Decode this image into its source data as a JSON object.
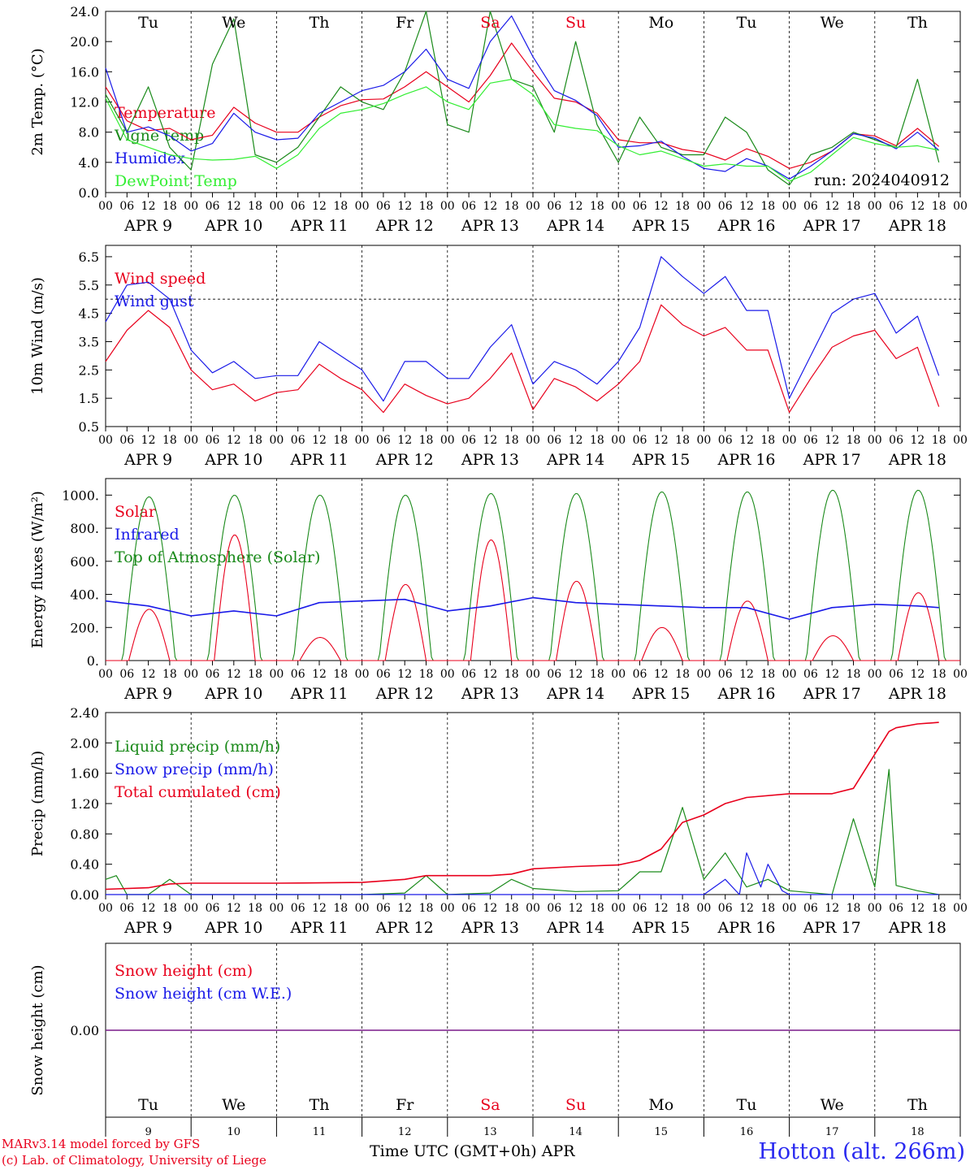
{
  "days": [
    "Tu",
    "We",
    "Th",
    "Fr",
    "Sa",
    "Su",
    "Mo",
    "Tu",
    "We",
    "Th"
  ],
  "dates": [
    "APR  9",
    "APR 10",
    "APR 11",
    "APR 12",
    "APR 13",
    "APR 14",
    "APR 15",
    "APR 16",
    "APR 17",
    "APR 18"
  ],
  "day_numbers": [
    "9",
    "10",
    "11",
    "12",
    "13",
    "14",
    "15",
    "16",
    "17",
    "18"
  ],
  "hour_labels": [
    "00",
    "06",
    "12",
    "18"
  ],
  "weekend_day_indices": [
    4,
    5
  ],
  "colors": {
    "weekend": "#e8001c",
    "temperature": "#e8001c",
    "vigne": "#1a8a1a",
    "humidex": "#1a1ae8",
    "dewpoint": "#33ee33",
    "solar": "#e8001c",
    "infrared": "#1a1ae8",
    "toa": "#1a8a1a"
  },
  "run_label": "run: 2024040912",
  "footer": {
    "model": "MARv3.14 model forced by GFS",
    "copyright": "(c) Lab. of Climatology, University of Liege",
    "xlabel": "Time UTC (GMT+0h) APR",
    "station": "Hotton (alt. 266m)"
  },
  "chart_data": [
    {
      "type": "line",
      "ylabel": "2m Temp. (°C)",
      "ylim": [
        0,
        24
      ],
      "yticks": [
        "0.0",
        "4.0",
        "8.0",
        "12.0",
        "16.0",
        "20.0",
        "24.0"
      ],
      "x_unit": "hours since 2024-04-09 00 UTC",
      "series": [
        {
          "name": "Temperature",
          "color": "#e8001c",
          "x": [
            0,
            6,
            12,
            18,
            24,
            30,
            36,
            42,
            48,
            54,
            60,
            66,
            72,
            78,
            84,
            90,
            96,
            102,
            108,
            114,
            120,
            126,
            132,
            138,
            144,
            150,
            156,
            162,
            168,
            174,
            180,
            186,
            192,
            198,
            204,
            210,
            216,
            222,
            228,
            234
          ],
          "y": [
            14,
            9.5,
            8.2,
            8.5,
            7,
            7.6,
            11.3,
            9.2,
            8,
            8,
            10,
            11.5,
            12.3,
            12.4,
            14,
            16,
            14,
            12,
            15.5,
            19.8,
            16,
            12.5,
            12,
            10.5,
            7,
            6.6,
            6.6,
            5.7,
            5.3,
            4.3,
            5.8,
            4.8,
            3.2,
            4,
            5.5,
            7.8,
            7.5,
            6.2,
            8.5,
            6.1
          ]
        },
        {
          "name": "Vigne temp",
          "color": "#1a8a1a",
          "x": [
            0,
            6,
            12,
            18,
            24,
            30,
            36,
            42,
            48,
            54,
            60,
            66,
            72,
            78,
            84,
            90,
            96,
            102,
            108,
            114,
            120,
            126,
            132,
            138,
            144,
            150,
            156,
            162,
            168,
            174,
            180,
            186,
            192,
            198,
            204,
            210,
            216,
            222,
            228,
            234
          ],
          "y": [
            13,
            8,
            14,
            6,
            3,
            17,
            23,
            5,
            4,
            6,
            10,
            14,
            12,
            11,
            16,
            24,
            9,
            8,
            24,
            15,
            14,
            8,
            20,
            9,
            4,
            10,
            6,
            5,
            5,
            10,
            8,
            3,
            1,
            5,
            6,
            8,
            7,
            6,
            15,
            4
          ]
        },
        {
          "name": "Humidex",
          "color": "#1a1ae8",
          "x": [
            0,
            6,
            12,
            18,
            24,
            30,
            36,
            42,
            48,
            54,
            60,
            66,
            72,
            78,
            84,
            90,
            96,
            102,
            108,
            114,
            120,
            126,
            132,
            138,
            144,
            150,
            156,
            162,
            168,
            174,
            180,
            186,
            192,
            198,
            204,
            210,
            216,
            222,
            228,
            234
          ],
          "y": [
            16.5,
            8,
            8.7,
            7.5,
            5.5,
            6.5,
            10.5,
            8,
            7,
            7.2,
            10.5,
            12,
            13.5,
            14.2,
            16,
            19,
            15,
            13.8,
            20,
            23.4,
            18,
            13.5,
            12.2,
            10.2,
            6,
            6.2,
            6.8,
            4.8,
            3.2,
            2.8,
            4.5,
            3.5,
            1.8,
            3.5,
            5.5,
            7.8,
            7.2,
            5.8,
            8,
            5.6
          ]
        },
        {
          "name": "DewPoint Temp",
          "color": "#33ee33",
          "x": [
            0,
            6,
            12,
            18,
            24,
            30,
            36,
            42,
            48,
            54,
            60,
            66,
            72,
            78,
            84,
            90,
            96,
            102,
            108,
            114,
            120,
            126,
            132,
            138,
            144,
            150,
            156,
            162,
            168,
            174,
            180,
            186,
            192,
            198,
            204,
            210,
            216,
            222,
            228,
            234
          ],
          "y": [
            12.5,
            7,
            6,
            5,
            4.5,
            4.3,
            4.4,
            4.8,
            3.2,
            5,
            8.5,
            10.5,
            11,
            11.8,
            13,
            14,
            12,
            11,
            14.5,
            15,
            13,
            9,
            8.5,
            8.2,
            6.2,
            5,
            5.5,
            4.5,
            3.5,
            3.8,
            3.5,
            3.5,
            1.5,
            2.7,
            5,
            7.3,
            6.5,
            6,
            6.2,
            5.6
          ]
        }
      ],
      "legend": [
        "Temperature",
        "Vigne temp",
        "Humidex",
        "DewPoint Temp"
      ]
    },
    {
      "type": "line",
      "ylabel": "10m Wind (m/s)",
      "ylim": [
        0.5,
        6.9
      ],
      "yticks": [
        "0.5",
        "1.5",
        "2.5",
        "3.5",
        "4.5",
        "5.5",
        "6.5"
      ],
      "reference_line": 5.0,
      "series": [
        {
          "name": "Wind speed",
          "color": "#e8001c",
          "x": [
            0,
            6,
            12,
            18,
            24,
            30,
            36,
            42,
            48,
            54,
            60,
            66,
            72,
            78,
            84,
            90,
            96,
            102,
            108,
            114,
            120,
            126,
            132,
            138,
            144,
            150,
            156,
            162,
            168,
            174,
            180,
            186,
            192,
            198,
            204,
            210,
            216,
            222,
            228,
            234
          ],
          "y": [
            2.8,
            3.9,
            4.6,
            4,
            2.5,
            1.8,
            2,
            1.4,
            1.7,
            1.8,
            2.7,
            2.2,
            1.8,
            1,
            2,
            1.6,
            1.3,
            1.5,
            2.2,
            3.1,
            1.1,
            2.2,
            1.9,
            1.4,
            2,
            2.8,
            4.8,
            4.1,
            3.7,
            4,
            3.2,
            3.2,
            1,
            2.2,
            3.3,
            3.7,
            3.9,
            2.9,
            3.3,
            1.2
          ]
        },
        {
          "name": "Wind gust",
          "color": "#1a1ae8",
          "x": [
            0,
            6,
            12,
            18,
            24,
            30,
            36,
            42,
            48,
            54,
            60,
            66,
            72,
            78,
            84,
            90,
            96,
            102,
            108,
            114,
            120,
            126,
            132,
            138,
            144,
            150,
            156,
            162,
            168,
            174,
            180,
            186,
            192,
            198,
            204,
            210,
            216,
            222,
            228,
            234
          ],
          "y": [
            4.2,
            5.5,
            5.6,
            5,
            3.2,
            2.4,
            2.8,
            2.2,
            2.3,
            2.3,
            3.5,
            3,
            2.5,
            1.4,
            2.8,
            2.8,
            2.2,
            2.2,
            3.3,
            4.1,
            2,
            2.8,
            2.5,
            2,
            2.8,
            4,
            6.5,
            5.8,
            5.2,
            5.8,
            4.6,
            4.6,
            1.5,
            3,
            4.5,
            5,
            5.2,
            3.8,
            4.4,
            2.3
          ]
        }
      ],
      "legend": [
        "Wind speed",
        "Wind gust"
      ]
    },
    {
      "type": "line",
      "ylabel": "Energy fluxes (W/m²)",
      "ylim": [
        0,
        1100
      ],
      "yticks": [
        "0.",
        "200.",
        "400.",
        "600.",
        "800.",
        "1000."
      ],
      "series": [
        {
          "name": "Solar",
          "color": "#e8001c",
          "daily_peak": [
            310,
            760,
            140,
            460,
            730,
            480,
            200,
            360,
            150,
            410
          ]
        },
        {
          "name": "Infrared",
          "color": "#1a1ae8",
          "x": [
            0,
            12,
            24,
            36,
            48,
            60,
            72,
            84,
            96,
            108,
            120,
            132,
            144,
            156,
            168,
            180,
            192,
            204,
            216,
            228,
            234
          ],
          "y": [
            360,
            330,
            270,
            300,
            270,
            350,
            360,
            370,
            300,
            330,
            380,
            350,
            340,
            330,
            320,
            320,
            250,
            320,
            340,
            330,
            320
          ]
        },
        {
          "name": "Top of Atmosphere (Solar)",
          "color": "#1a8a1a",
          "daily_peak": [
            990,
            1000,
            1000,
            1000,
            1010,
            1010,
            1020,
            1020,
            1030,
            1030
          ]
        }
      ],
      "legend": [
        "Solar",
        "Infrared",
        "Top of Atmosphere (Solar)"
      ]
    },
    {
      "type": "line",
      "ylabel": "Precip (mm/h)",
      "ylim": [
        0,
        2.4
      ],
      "yticks": [
        "0.00",
        "0.40",
        "0.80",
        "1.20",
        "1.60",
        "2.00",
        "2.40"
      ],
      "series": [
        {
          "name": "Liquid precip (mm/h)",
          "color": "#1a8a1a",
          "x": [
            0,
            3,
            6,
            12,
            18,
            24,
            30,
            36,
            48,
            60,
            72,
            84,
            90,
            96,
            108,
            114,
            120,
            132,
            144,
            150,
            156,
            162,
            168,
            174,
            180,
            186,
            192,
            204,
            210,
            216,
            220,
            222,
            228,
            234
          ],
          "y": [
            0.2,
            0.25,
            0,
            0,
            0.2,
            0,
            0,
            0,
            0,
            0,
            0,
            0.02,
            0.25,
            0,
            0.02,
            0.2,
            0.08,
            0.04,
            0.05,
            0.3,
            0.3,
            1.15,
            0.2,
            0.55,
            0.1,
            0.2,
            0.05,
            0,
            1.0,
            0.1,
            1.65,
            0.12,
            0.05,
            0
          ]
        },
        {
          "name": "Snow precip (mm/h)",
          "color": "#1a1ae8",
          "x": [
            0,
            168,
            174,
            178,
            180,
            184,
            186,
            190,
            192,
            234
          ],
          "y": [
            0,
            0,
            0.2,
            0,
            0.55,
            0.1,
            0.4,
            0.05,
            0,
            0
          ]
        },
        {
          "name": "Total cumulated (cm)",
          "color": "#e8001c",
          "x": [
            0,
            12,
            18,
            24,
            48,
            72,
            84,
            90,
            96,
            108,
            114,
            120,
            132,
            144,
            150,
            156,
            162,
            168,
            174,
            180,
            192,
            204,
            210,
            216,
            220,
            222,
            228,
            234
          ],
          "y": [
            0.07,
            0.09,
            0.14,
            0.15,
            0.15,
            0.16,
            0.2,
            0.25,
            0.25,
            0.25,
            0.27,
            0.34,
            0.37,
            0.39,
            0.45,
            0.6,
            0.95,
            1.05,
            1.2,
            1.28,
            1.33,
            1.33,
            1.4,
            1.85,
            2.15,
            2.2,
            2.25,
            2.27
          ]
        }
      ],
      "legend": [
        "Liquid precip (mm/h)",
        "Snow precip (mm/h)",
        "Total cumulated (cm)"
      ]
    },
    {
      "type": "line",
      "ylabel": "Snow height (cm)",
      "yticks": [
        "0.00"
      ],
      "series": [
        {
          "name": "Snow height (cm)",
          "color": "#e8001c",
          "x": [
            0,
            234
          ],
          "y": [
            0,
            0
          ]
        },
        {
          "name": "Snow height (cm W.E.)",
          "color": "#1a1ae8",
          "x": [
            0,
            234
          ],
          "y": [
            0,
            0
          ]
        }
      ],
      "legend": [
        "Snow height (cm)",
        "Snow height (cm W.E.)"
      ]
    }
  ]
}
